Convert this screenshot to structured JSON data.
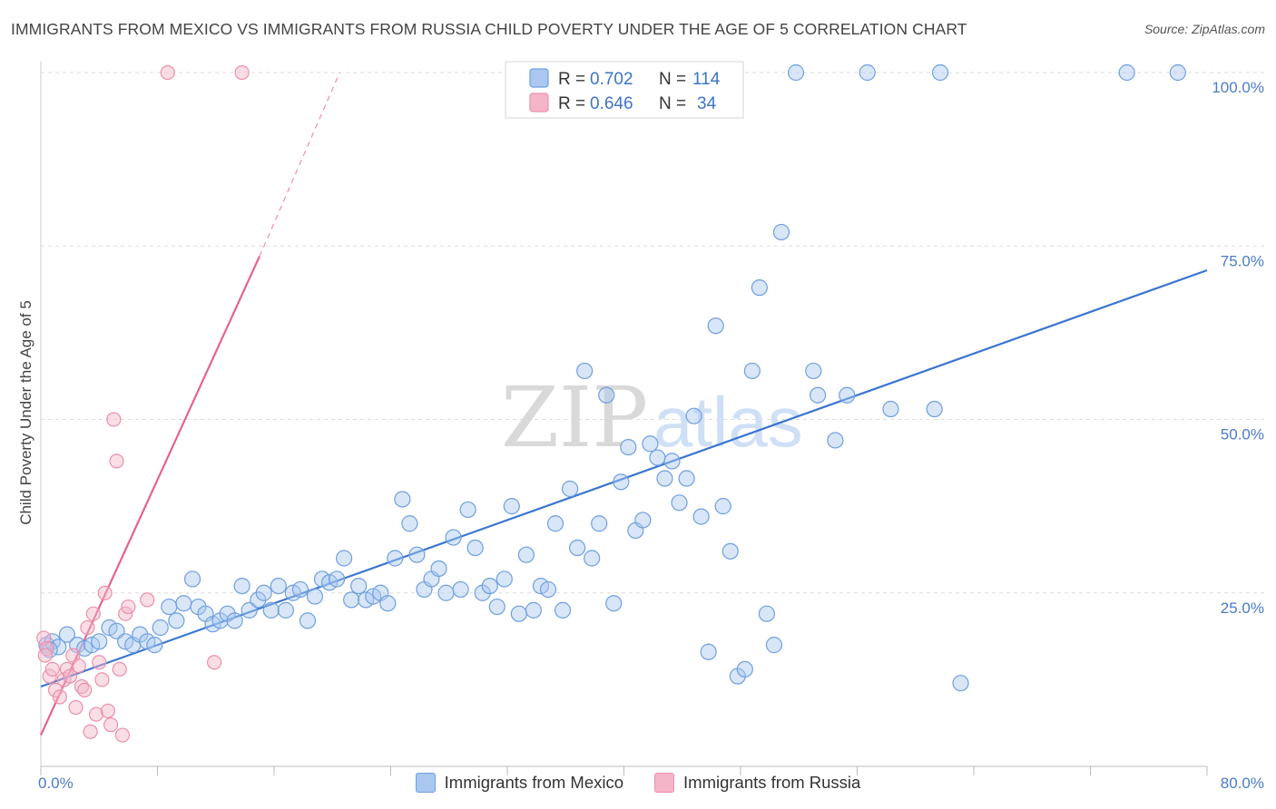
{
  "title": "IMMIGRANTS FROM MEXICO VS IMMIGRANTS FROM RUSSIA CHILD POVERTY UNDER THE AGE OF 5 CORRELATION CHART",
  "source": "Source: ZipAtlas.com",
  "watermark": {
    "zip": "ZIP",
    "atlas": "atlas"
  },
  "colors": {
    "mexico_fill": "#a9c7ef",
    "mexico_stroke": "#6f9fe0",
    "mexico_line": "#3a75d1",
    "russia_fill": "#f5b5c8",
    "russia_stroke": "#ec8fab",
    "russia_line": "#e5638f",
    "grid": "#dcdcdc",
    "axis_text": "#4a7cc9"
  },
  "chart_data": {
    "type": "scatter",
    "xlabel": "",
    "ylabel": "Child Poverty Under the Age of 5",
    "xlim": [
      0,
      80
    ],
    "ylim": [
      0,
      100
    ],
    "x_tick_labels": [
      "0.0%",
      "80.0%"
    ],
    "y_ticks": [
      25,
      50,
      75,
      100
    ],
    "y_tick_labels": [
      "25.0%",
      "50.0%",
      "75.0%",
      "100.0%"
    ],
    "legend": [
      {
        "r_label": "R =",
        "r_value": "0.702",
        "n_label": "N =",
        "n_value": "114"
      },
      {
        "r_label": "R =",
        "r_value": "0.646",
        "n_label": "N =",
        "n_value": "34"
      }
    ],
    "series": [
      {
        "name": "Immigrants from Mexico",
        "trend": {
          "x0": 0,
          "y0": 11.5,
          "x1": 80,
          "y1": 71.5
        },
        "points": [
          [
            0.4,
            17.5
          ],
          [
            0.8,
            18.0
          ],
          [
            1.2,
            17.2
          ],
          [
            1.8,
            19.0
          ],
          [
            2.5,
            17.5
          ],
          [
            3.0,
            17.0
          ],
          [
            3.5,
            17.5
          ],
          [
            4.0,
            18.0
          ],
          [
            4.7,
            20.0
          ],
          [
            5.2,
            19.5
          ],
          [
            5.8,
            18.0
          ],
          [
            6.3,
            17.5
          ],
          [
            6.8,
            19.0
          ],
          [
            7.3,
            18.0
          ],
          [
            7.8,
            17.5
          ],
          [
            8.2,
            20.0
          ],
          [
            8.8,
            23.0
          ],
          [
            9.3,
            21.0
          ],
          [
            9.8,
            23.5
          ],
          [
            10.4,
            27.0
          ],
          [
            10.8,
            23.0
          ],
          [
            11.3,
            22.0
          ],
          [
            11.8,
            20.5
          ],
          [
            12.3,
            21.0
          ],
          [
            12.8,
            22.0
          ],
          [
            13.3,
            21.0
          ],
          [
            13.8,
            26.0
          ],
          [
            14.3,
            22.5
          ],
          [
            14.9,
            24.0
          ],
          [
            15.3,
            25.0
          ],
          [
            15.8,
            22.5
          ],
          [
            16.3,
            26.0
          ],
          [
            16.8,
            22.5
          ],
          [
            17.3,
            25.0
          ],
          [
            17.8,
            25.5
          ],
          [
            18.3,
            21.0
          ],
          [
            18.8,
            24.5
          ],
          [
            19.3,
            27.0
          ],
          [
            19.8,
            26.5
          ],
          [
            20.3,
            27.0
          ],
          [
            20.8,
            30.0
          ],
          [
            21.3,
            24.0
          ],
          [
            21.8,
            26.0
          ],
          [
            22.3,
            24.0
          ],
          [
            22.8,
            24.5
          ],
          [
            23.3,
            25.0
          ],
          [
            23.8,
            23.5
          ],
          [
            24.3,
            30.0
          ],
          [
            24.8,
            38.5
          ],
          [
            25.3,
            35.0
          ],
          [
            25.8,
            30.5
          ],
          [
            26.3,
            25.5
          ],
          [
            26.8,
            27.0
          ],
          [
            27.3,
            28.5
          ],
          [
            27.8,
            25.0
          ],
          [
            28.3,
            33.0
          ],
          [
            28.8,
            25.5
          ],
          [
            29.3,
            37.0
          ],
          [
            29.8,
            31.5
          ],
          [
            30.3,
            25.0
          ],
          [
            30.8,
            26.0
          ],
          [
            31.3,
            23.0
          ],
          [
            31.8,
            27.0
          ],
          [
            32.3,
            37.5
          ],
          [
            32.8,
            22.0
          ],
          [
            33.3,
            30.5
          ],
          [
            33.8,
            22.5
          ],
          [
            34.3,
            26.0
          ],
          [
            34.8,
            25.5
          ],
          [
            35.3,
            35.0
          ],
          [
            35.8,
            22.5
          ],
          [
            36.3,
            40.0
          ],
          [
            36.8,
            31.5
          ],
          [
            37.3,
            57.0
          ],
          [
            37.8,
            30.0
          ],
          [
            38.3,
            35.0
          ],
          [
            38.8,
            53.5
          ],
          [
            39.3,
            23.5
          ],
          [
            39.8,
            41.0
          ],
          [
            40.3,
            46.0
          ],
          [
            40.8,
            34.0
          ],
          [
            41.3,
            35.5
          ],
          [
            41.8,
            46.5
          ],
          [
            42.3,
            44.5
          ],
          [
            42.8,
            41.5
          ],
          [
            43.3,
            44.0
          ],
          [
            43.8,
            38.0
          ],
          [
            44.3,
            41.5
          ],
          [
            44.8,
            50.5
          ],
          [
            45.3,
            36.0
          ],
          [
            45.8,
            16.5
          ],
          [
            46.3,
            63.5
          ],
          [
            46.8,
            37.5
          ],
          [
            47.3,
            31.0
          ],
          [
            47.8,
            13.0
          ],
          [
            48.3,
            14.0
          ],
          [
            48.8,
            57.0
          ],
          [
            49.3,
            69.0
          ],
          [
            49.8,
            22.0
          ],
          [
            50.3,
            17.5
          ],
          [
            50.8,
            77.0
          ],
          [
            51.8,
            100.0
          ],
          [
            53.0,
            57.0
          ],
          [
            53.3,
            53.5
          ],
          [
            54.5,
            47.0
          ],
          [
            55.3,
            53.5
          ],
          [
            56.7,
            100.0
          ],
          [
            58.3,
            51.5
          ],
          [
            61.3,
            51.5
          ],
          [
            61.7,
            100.0
          ],
          [
            63.1,
            12.0
          ],
          [
            74.5,
            100.0
          ],
          [
            78.0,
            100.0
          ],
          [
            0.6,
            16.8
          ]
        ]
      },
      {
        "name": "Immigrants from Russia",
        "trend": {
          "x0": 0,
          "y0": 4.5,
          "x1": 15,
          "y1": 73.5,
          "dash_x1": 20.5,
          "dash_y1": 100
        },
        "points": [
          [
            0.2,
            18.5
          ],
          [
            0.4,
            17.0
          ],
          [
            0.6,
            13.0
          ],
          [
            0.8,
            14.0
          ],
          [
            1.0,
            11.0
          ],
          [
            1.3,
            10.0
          ],
          [
            1.6,
            12.5
          ],
          [
            1.8,
            14.0
          ],
          [
            2.0,
            13.0
          ],
          [
            2.2,
            16.0
          ],
          [
            2.4,
            8.5
          ],
          [
            2.6,
            14.5
          ],
          [
            2.8,
            11.5
          ],
          [
            3.0,
            11.0
          ],
          [
            3.2,
            20.0
          ],
          [
            3.4,
            5.0
          ],
          [
            3.6,
            22.0
          ],
          [
            3.8,
            7.5
          ],
          [
            4.0,
            15.0
          ],
          [
            4.2,
            12.5
          ],
          [
            4.4,
            25.0
          ],
          [
            4.6,
            8.0
          ],
          [
            4.8,
            6.0
          ],
          [
            5.0,
            50.0
          ],
          [
            5.2,
            44.0
          ],
          [
            5.4,
            14.0
          ],
          [
            5.6,
            4.5
          ],
          [
            5.8,
            22.0
          ],
          [
            6.0,
            23.0
          ],
          [
            7.3,
            24.0
          ],
          [
            8.7,
            100.0
          ],
          [
            11.9,
            15.0
          ],
          [
            13.8,
            100.0
          ],
          [
            0.3,
            16.0
          ]
        ]
      }
    ]
  },
  "bottom_legend": [
    {
      "label": "Immigrants from Mexico"
    },
    {
      "label": "Immigrants from Russia"
    }
  ]
}
